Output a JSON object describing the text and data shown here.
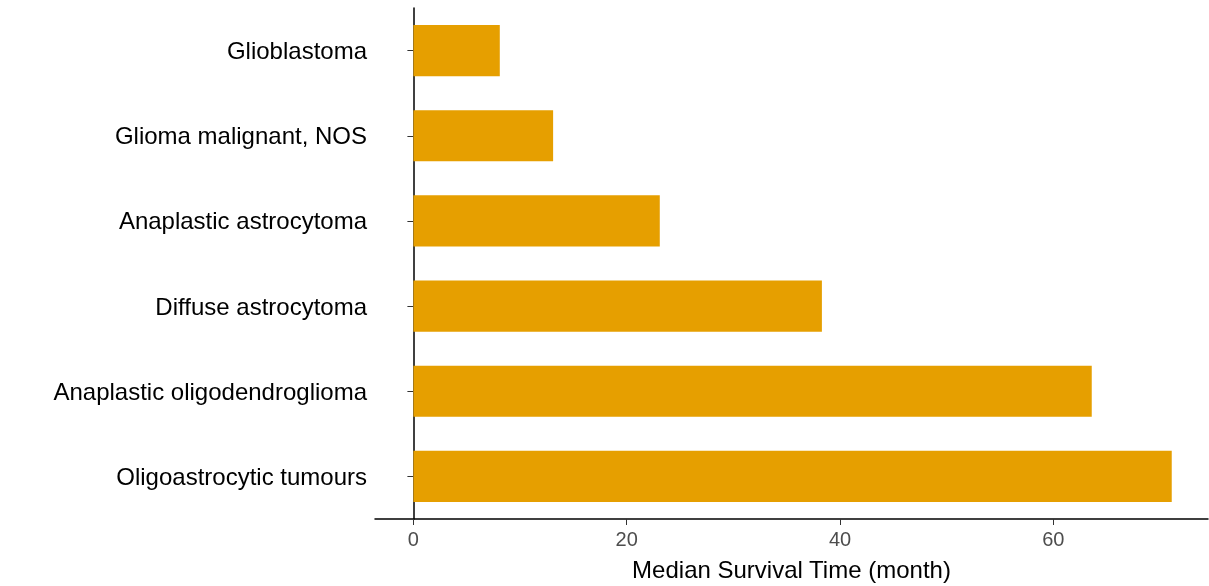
{
  "chart_data": {
    "type": "bar",
    "orientation": "horizontal",
    "xlabel": "Median Survival Time (month)",
    "categories": [
      "Glioblastoma",
      "Glioma malignant, NOS",
      "Anaplastic astrocytoma",
      "Diffuse astrocytoma",
      "Anaplastic oligodendroglioma",
      "Oligoastrocytic tumours"
    ],
    "values": [
      8.1,
      13.1,
      23.1,
      38.3,
      63.6,
      71.1
    ],
    "color": "#e69f00",
    "xlim": [
      -3.6,
      74.5
    ],
    "xticks": [
      0,
      20,
      40,
      60
    ],
    "grid": false
  }
}
